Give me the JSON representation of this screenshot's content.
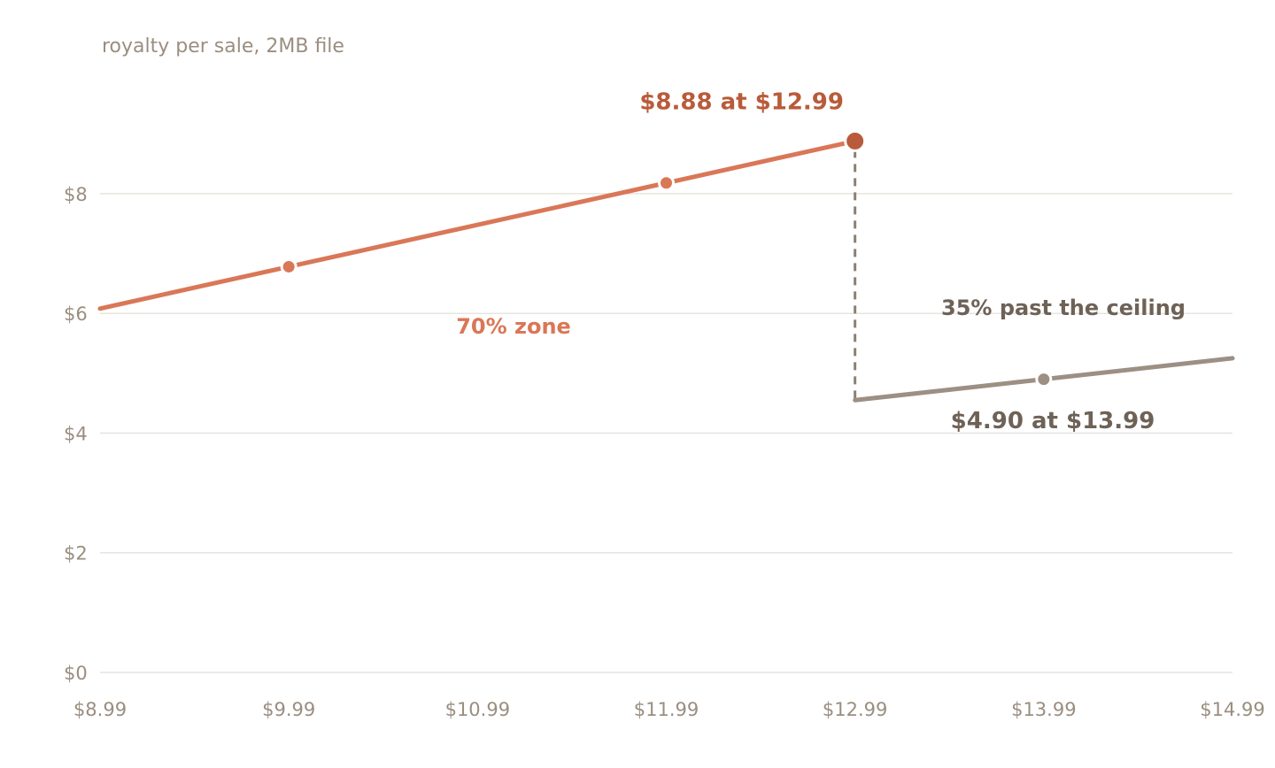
{
  "chart_data": {
    "type": "line",
    "title": "",
    "ylabel": "royalty per sale, 2MB file",
    "xlabel": "",
    "x_tick_labels": [
      "$8.99",
      "$9.99",
      "$10.99",
      "$11.99",
      "$12.99",
      "$13.99",
      "$14.99"
    ],
    "x_ticks": [
      8.99,
      9.99,
      10.99,
      11.99,
      12.99,
      13.99,
      14.99
    ],
    "y_tick_labels": [
      "$0",
      "$2",
      "$4",
      "$6",
      "$8"
    ],
    "y_ticks": [
      0,
      2,
      4,
      6,
      8
    ],
    "xlim": [
      8.99,
      14.99
    ],
    "ylim": [
      0,
      9.3
    ],
    "grid": true,
    "series": [
      {
        "key": "70pct",
        "color": "#d97757",
        "x": [
          8.99,
          9.99,
          11.99,
          12.99
        ],
        "y": [
          6.08,
          6.78,
          8.18,
          8.88
        ],
        "markers": [
          9.99,
          11.99
        ]
      },
      {
        "key": "35pct",
        "color": "#9d8f83",
        "x": [
          12.99,
          13.99,
          14.99
        ],
        "y": [
          4.55,
          4.9,
          5.25
        ],
        "markers": [
          13.99
        ]
      }
    ],
    "drop_line": {
      "x": 12.99,
      "y_from": 8.88,
      "y_to": 4.55,
      "color": "#8c7f73"
    },
    "peak_point": {
      "x": 12.99,
      "y": 8.88,
      "color": "#b95b3a"
    },
    "annotations": {
      "peak": {
        "text": "$8.88 at $12.99",
        "x": 12.99,
        "y": 8.88
      },
      "zone": {
        "text": "70% zone",
        "x": 11.2,
        "y": 5.6
      },
      "ceiling": {
        "text": "35% past the ceiling",
        "x": 13.99,
        "y": 5.95
      },
      "low": {
        "text": "$4.90 at $13.99",
        "x": 13.99,
        "y": 4.9
      }
    }
  }
}
